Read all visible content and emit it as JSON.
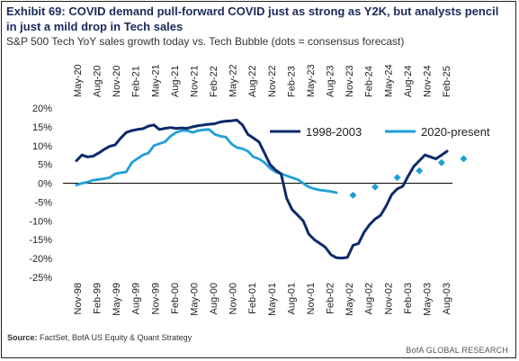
{
  "header": {
    "title": "Exhibit 69: COVID demand pull-forward COVID just as strong as Y2K, but analysts pencil in just a mild drop in Tech sales",
    "subtitle": "S&P 500 Tech YoY sales growth today vs. Tech Bubble (dots = consensus forecast)"
  },
  "footer": {
    "source_label": "Source:",
    "source_text": "FactSet, BofA US Equity & Quant Strategy",
    "brand": "BofA GLOBAL RESEARCH"
  },
  "colors": {
    "series_1998": "#0d2a6b",
    "series_2020": "#1f9fd9",
    "zero_line": "#111111"
  },
  "chart_data": {
    "type": "line",
    "ylim": [
      -25,
      20
    ],
    "yticks": [
      20,
      15,
      10,
      5,
      0,
      -5,
      -10,
      -15,
      -20,
      -25
    ],
    "ytick_labels": [
      "20%",
      "15%",
      "10%",
      "5%",
      "0%",
      "-5%",
      "-10%",
      "-15%",
      "-20%",
      "-25%"
    ],
    "x_top_labels": [
      "May-20",
      "Aug-20",
      "Nov-20",
      "Feb-21",
      "May-21",
      "Aug-21",
      "Nov-21",
      "Feb-22",
      "May-22",
      "Aug-22",
      "Nov-22",
      "Feb-23",
      "May-23",
      "Aug-23",
      "Nov-23",
      "Feb-24",
      "May-24",
      "Aug-24",
      "Nov-24",
      "Feb-25"
    ],
    "x_bottom_labels": [
      "Nov-98",
      "Feb-99",
      "May-99",
      "Aug-99",
      "Nov-99",
      "Feb-00",
      "May-00",
      "Aug-00",
      "Nov-00",
      "Feb-01",
      "May-01",
      "Aug-01",
      "Nov-01",
      "Feb-02",
      "May-02",
      "Aug-02",
      "Nov-02",
      "Feb-03",
      "May-03",
      "Aug-03"
    ],
    "legend": [
      "1998-2003",
      "2020-present"
    ],
    "legend_placement": "top-right",
    "series": [
      {
        "name": "1998-2003",
        "style": "solid",
        "values": [
          6,
          7.5,
          7,
          7.2,
          8,
          9,
          9.8,
          10.2,
          12,
          13.5,
          14,
          14.3,
          14.5,
          15.2,
          15.5,
          14.3,
          14.6,
          14.8,
          14.6,
          14.7,
          14.6,
          15,
          15.3,
          15.5,
          15.7,
          15.8,
          16.3,
          16.5,
          16.6,
          16.8,
          15.5,
          13,
          12,
          11,
          8,
          5,
          3.5,
          2.5,
          -4,
          -7,
          -8.5,
          -10,
          -13.5,
          -15,
          -16,
          -17,
          -19,
          -19.8,
          -19.9,
          -19.7,
          -16.5,
          -16,
          -13,
          -11,
          -9.5,
          -8.5,
          -6,
          -3,
          -1.5,
          -0.8,
          2,
          4.5,
          6,
          7.5,
          7,
          6.5,
          7.5,
          8.5
        ]
      },
      {
        "name": "2020-present",
        "style": "solid",
        "values": [
          -0.5,
          0,
          0.3,
          0.8,
          1,
          1.2,
          1.5,
          2.5,
          2.8,
          3,
          5.5,
          6.5,
          7.5,
          8,
          10,
          10.5,
          11,
          12.5,
          13.5,
          14,
          14,
          13.5,
          14,
          14.2,
          14.3,
          13,
          12.5,
          12.3,
          10.5,
          9.5,
          9.2,
          8.5,
          7,
          6.5,
          5.5,
          4,
          3,
          2.5,
          2,
          1.5,
          1,
          0,
          -1,
          -1.5,
          -1.8,
          -2,
          -2.2,
          -2.5
        ],
        "forecast_dots": [
          {
            "x": 50,
            "y": -3.2
          },
          {
            "x": 54,
            "y": -1
          },
          {
            "x": 58,
            "y": 1.5
          },
          {
            "x": 62,
            "y": 3.3
          },
          {
            "x": 66,
            "y": 5.5
          },
          {
            "x": 70,
            "y": 6.5
          }
        ]
      }
    ]
  }
}
